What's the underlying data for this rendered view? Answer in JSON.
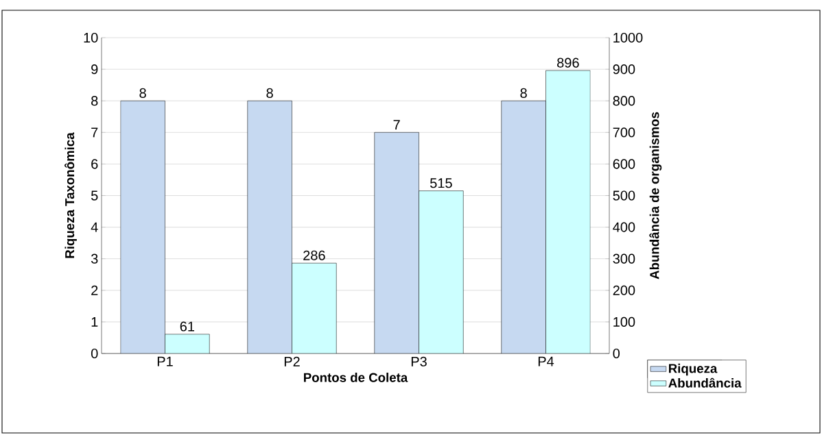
{
  "chart_data": {
    "type": "bar",
    "categories": [
      "P1",
      "P2",
      "P3",
      "P4"
    ],
    "series": [
      {
        "name": "Riqueza",
        "color": "#c6d9f1",
        "values": [
          8,
          8,
          7,
          8
        ]
      },
      {
        "name": "Abundância",
        "color": "#ccffff",
        "values": [
          61,
          286,
          515,
          896
        ],
        "axis": "y2"
      }
    ],
    "xlabel": "Pontos de Coleta",
    "ylabel": "Riqueza Taxonômica",
    "y2label": "Abundância de organismos",
    "ylim": [
      0,
      10
    ],
    "yticks": [
      0,
      1,
      2,
      3,
      4,
      5,
      6,
      7,
      8,
      9,
      10
    ],
    "y2lim": [
      0,
      1000
    ],
    "y2ticks": [
      0,
      100,
      200,
      300,
      400,
      500,
      600,
      700,
      800,
      900,
      1000
    ],
    "grid": "y",
    "legend": "bottom right",
    "data_labels": true
  }
}
